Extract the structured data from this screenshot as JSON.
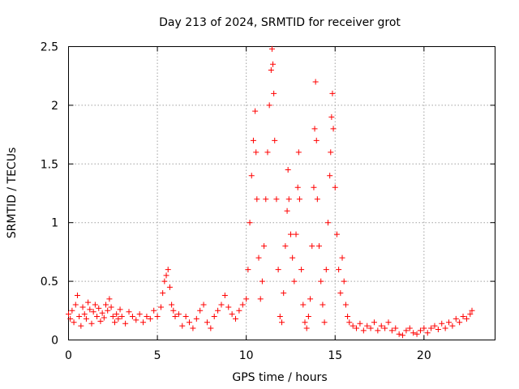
{
  "chart_data": {
    "type": "scatter",
    "title": "Day 213 of 2024, SRMTID for receiver grot",
    "xlabel": "GPS time / hours",
    "ylabel": "SRMTID / TECUs",
    "xlim": [
      0,
      24
    ],
    "ylim": [
      0,
      2.5
    ],
    "xticks": [
      0,
      5,
      10,
      15,
      20
    ],
    "xtick_labels": [
      "0",
      "5",
      "10",
      "15",
      "20"
    ],
    "yticks": [
      0,
      0.5,
      1,
      1.5,
      2,
      2.5
    ],
    "ytick_labels": [
      "0",
      "0.5",
      "1",
      "1.5",
      "2",
      "2.5"
    ],
    "grid": true,
    "marker": "+",
    "series": [
      {
        "name": "SRMTID",
        "color": "#ff0000",
        "points": [
          [
            0.0,
            0.22
          ],
          [
            0.1,
            0.18
          ],
          [
            0.2,
            0.25
          ],
          [
            0.3,
            0.15
          ],
          [
            0.4,
            0.3
          ],
          [
            0.5,
            0.38
          ],
          [
            0.6,
            0.2
          ],
          [
            0.7,
            0.12
          ],
          [
            0.8,
            0.28
          ],
          [
            0.9,
            0.22
          ],
          [
            1.0,
            0.18
          ],
          [
            1.1,
            0.32
          ],
          [
            1.2,
            0.26
          ],
          [
            1.3,
            0.14
          ],
          [
            1.4,
            0.24
          ],
          [
            1.5,
            0.3
          ],
          [
            1.6,
            0.2
          ],
          [
            1.7,
            0.27
          ],
          [
            1.8,
            0.16
          ],
          [
            1.9,
            0.23
          ],
          [
            2.0,
            0.19
          ],
          [
            2.1,
            0.3
          ],
          [
            2.2,
            0.25
          ],
          [
            2.3,
            0.35
          ],
          [
            2.4,
            0.28
          ],
          [
            2.5,
            0.2
          ],
          [
            2.6,
            0.15
          ],
          [
            2.7,
            0.22
          ],
          [
            2.8,
            0.18
          ],
          [
            2.9,
            0.26
          ],
          [
            3.0,
            0.2
          ],
          [
            3.2,
            0.14
          ],
          [
            3.4,
            0.24
          ],
          [
            3.6,
            0.2
          ],
          [
            3.8,
            0.17
          ],
          [
            4.0,
            0.22
          ],
          [
            4.2,
            0.15
          ],
          [
            4.4,
            0.2
          ],
          [
            4.6,
            0.18
          ],
          [
            4.8,
            0.25
          ],
          [
            5.0,
            0.2
          ],
          [
            5.2,
            0.28
          ],
          [
            5.3,
            0.4
          ],
          [
            5.4,
            0.5
          ],
          [
            5.5,
            0.55
          ],
          [
            5.6,
            0.6
          ],
          [
            5.7,
            0.45
          ],
          [
            5.8,
            0.3
          ],
          [
            5.9,
            0.25
          ],
          [
            6.0,
            0.2
          ],
          [
            6.2,
            0.22
          ],
          [
            6.4,
            0.12
          ],
          [
            6.6,
            0.2
          ],
          [
            6.8,
            0.15
          ],
          [
            7.0,
            0.1
          ],
          [
            7.2,
            0.18
          ],
          [
            7.4,
            0.25
          ],
          [
            7.6,
            0.3
          ],
          [
            7.8,
            0.15
          ],
          [
            8.0,
            0.1
          ],
          [
            8.2,
            0.2
          ],
          [
            8.4,
            0.25
          ],
          [
            8.6,
            0.3
          ],
          [
            8.8,
            0.38
          ],
          [
            9.0,
            0.28
          ],
          [
            9.2,
            0.22
          ],
          [
            9.4,
            0.18
          ],
          [
            9.6,
            0.25
          ],
          [
            9.8,
            0.3
          ],
          [
            10.0,
            0.35
          ],
          [
            10.1,
            0.6
          ],
          [
            10.2,
            1.0
          ],
          [
            10.3,
            1.4
          ],
          [
            10.4,
            1.7
          ],
          [
            10.5,
            1.95
          ],
          [
            10.55,
            1.6
          ],
          [
            10.6,
            1.2
          ],
          [
            10.7,
            0.7
          ],
          [
            10.8,
            0.35
          ],
          [
            10.9,
            0.5
          ],
          [
            11.0,
            0.8
          ],
          [
            11.1,
            1.2
          ],
          [
            11.2,
            1.6
          ],
          [
            11.3,
            2.0
          ],
          [
            11.4,
            2.3
          ],
          [
            11.45,
            2.48
          ],
          [
            11.5,
            2.35
          ],
          [
            11.55,
            2.1
          ],
          [
            11.6,
            1.7
          ],
          [
            11.7,
            1.2
          ],
          [
            11.8,
            0.6
          ],
          [
            11.9,
            0.2
          ],
          [
            12.0,
            0.15
          ],
          [
            12.1,
            0.4
          ],
          [
            12.2,
            0.8
          ],
          [
            12.3,
            1.1
          ],
          [
            12.35,
            1.45
          ],
          [
            12.4,
            1.2
          ],
          [
            12.5,
            0.9
          ],
          [
            12.6,
            0.7
          ],
          [
            12.7,
            0.5
          ],
          [
            12.8,
            0.9
          ],
          [
            12.9,
            1.3
          ],
          [
            12.95,
            1.6
          ],
          [
            13.0,
            1.2
          ],
          [
            13.1,
            0.6
          ],
          [
            13.2,
            0.3
          ],
          [
            13.3,
            0.15
          ],
          [
            13.4,
            0.1
          ],
          [
            13.5,
            0.2
          ],
          [
            13.6,
            0.35
          ],
          [
            13.7,
            0.8
          ],
          [
            13.8,
            1.3
          ],
          [
            13.85,
            1.8
          ],
          [
            13.9,
            2.2
          ],
          [
            13.95,
            1.7
          ],
          [
            14.0,
            1.2
          ],
          [
            14.1,
            0.8
          ],
          [
            14.2,
            0.5
          ],
          [
            14.3,
            0.3
          ],
          [
            14.4,
            0.15
          ],
          [
            14.5,
            0.6
          ],
          [
            14.6,
            1.0
          ],
          [
            14.7,
            1.4
          ],
          [
            14.75,
            1.6
          ],
          [
            14.8,
            1.9
          ],
          [
            14.85,
            2.1
          ],
          [
            14.9,
            1.8
          ],
          [
            15.0,
            1.3
          ],
          [
            15.1,
            0.9
          ],
          [
            15.2,
            0.6
          ],
          [
            15.3,
            0.4
          ],
          [
            15.4,
            0.7
          ],
          [
            15.5,
            0.5
          ],
          [
            15.6,
            0.3
          ],
          [
            15.7,
            0.2
          ],
          [
            15.8,
            0.15
          ],
          [
            16.0,
            0.12
          ],
          [
            16.2,
            0.1
          ],
          [
            16.4,
            0.14
          ],
          [
            16.6,
            0.08
          ],
          [
            16.8,
            0.12
          ],
          [
            17.0,
            0.1
          ],
          [
            17.2,
            0.15
          ],
          [
            17.4,
            0.08
          ],
          [
            17.6,
            0.12
          ],
          [
            17.8,
            0.1
          ],
          [
            18.0,
            0.15
          ],
          [
            18.2,
            0.08
          ],
          [
            18.4,
            0.1
          ],
          [
            18.6,
            0.05
          ],
          [
            18.8,
            0.04
          ],
          [
            19.0,
            0.08
          ],
          [
            19.2,
            0.1
          ],
          [
            19.4,
            0.06
          ],
          [
            19.6,
            0.05
          ],
          [
            19.8,
            0.08
          ],
          [
            20.0,
            0.1
          ],
          [
            20.2,
            0.06
          ],
          [
            20.4,
            0.1
          ],
          [
            20.6,
            0.12
          ],
          [
            20.8,
            0.09
          ],
          [
            21.0,
            0.14
          ],
          [
            21.2,
            0.1
          ],
          [
            21.4,
            0.15
          ],
          [
            21.6,
            0.12
          ],
          [
            21.8,
            0.18
          ],
          [
            22.0,
            0.15
          ],
          [
            22.2,
            0.2
          ],
          [
            22.4,
            0.18
          ],
          [
            22.6,
            0.22
          ],
          [
            22.7,
            0.25
          ]
        ]
      }
    ]
  }
}
